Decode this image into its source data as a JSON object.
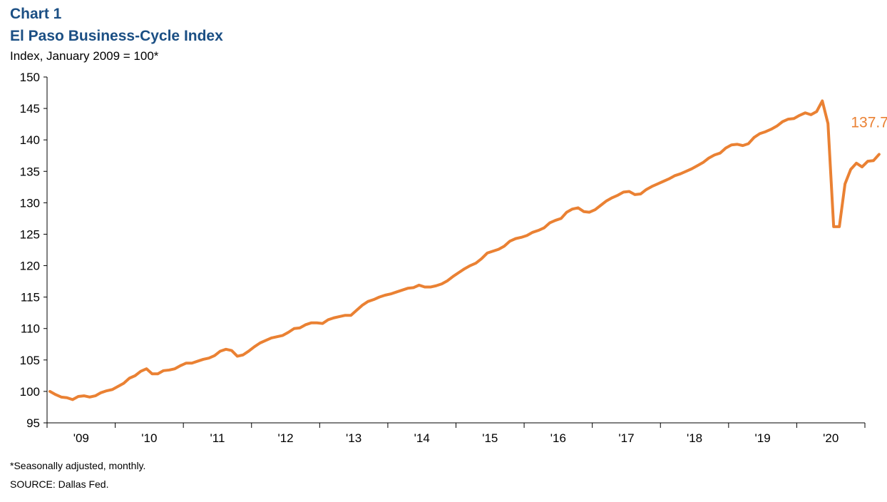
{
  "header": {
    "chart_number": "Chart 1",
    "title": "El Paso Business-Cycle Index",
    "subtitle": "Index, January 2009 = 100*"
  },
  "footer": {
    "note": "*Seasonally adjusted, monthly.",
    "source": "SOURCE:  Dallas Fed."
  },
  "colors": {
    "line": "#ea8133",
    "title": "#1b4f84",
    "axis": "#000000"
  },
  "chart_data": {
    "type": "line",
    "title": "El Paso Business-Cycle Index",
    "ylabel": "Index, January 2009 = 100*",
    "xlabel": "",
    "ylim": [
      95,
      150
    ],
    "yticks": [
      95,
      100,
      105,
      110,
      115,
      120,
      125,
      130,
      135,
      140,
      145,
      150
    ],
    "xlim": [
      "2009-01",
      "2020-12"
    ],
    "x_tick_labels": [
      "'09",
      "'10",
      "'11",
      "'12",
      "'13",
      "'14",
      "'15",
      "'16",
      "'17",
      "'18",
      "'19",
      "'20"
    ],
    "grid": false,
    "legend": "none",
    "series": [
      {
        "frequency": "monthly",
        "start": "2009-01",
        "values": [
          100.0,
          99.5,
          99.1,
          99.0,
          98.7,
          99.2,
          99.3,
          99.1,
          99.3,
          99.8,
          100.1,
          100.3,
          100.8,
          101.3,
          102.1,
          102.5,
          103.2,
          103.6,
          102.8,
          102.8,
          103.3,
          103.4,
          103.6,
          104.1,
          104.5,
          104.5,
          104.8,
          105.1,
          105.3,
          105.7,
          106.4,
          106.7,
          106.5,
          105.6,
          105.8,
          106.4,
          107.1,
          107.7,
          108.1,
          108.5,
          108.7,
          108.9,
          109.4,
          110.0,
          110.1,
          110.6,
          110.9,
          110.9,
          110.8,
          111.4,
          111.7,
          111.9,
          112.1,
          112.1,
          112.9,
          113.7,
          114.3,
          114.6,
          115.0,
          115.3,
          115.5,
          115.8,
          116.1,
          116.4,
          116.5,
          116.9,
          116.6,
          116.6,
          116.8,
          117.1,
          117.6,
          118.3,
          118.9,
          119.5,
          120.0,
          120.4,
          121.1,
          122.0,
          122.3,
          122.6,
          123.1,
          123.9,
          124.3,
          124.5,
          124.8,
          125.3,
          125.6,
          126.0,
          126.8,
          127.2,
          127.5,
          128.5,
          129.0,
          129.2,
          128.6,
          128.5,
          128.9,
          129.6,
          130.3,
          130.8,
          131.2,
          131.7,
          131.8,
          131.3,
          131.4,
          132.1,
          132.6,
          133.0,
          133.4,
          133.8,
          134.3,
          134.6,
          135.0,
          135.4,
          135.9,
          136.4,
          137.1,
          137.6,
          137.9,
          138.7,
          139.2,
          139.3,
          139.1,
          139.4,
          140.4,
          141.0,
          141.3,
          141.7,
          142.2,
          142.9,
          143.3,
          143.4,
          143.9,
          144.3,
          144.0,
          144.5,
          146.2,
          142.6,
          126.2,
          126.2,
          133.0,
          135.3,
          136.3,
          135.7,
          136.6,
          136.7,
          137.7
        ],
        "end_label": "137.7"
      }
    ]
  }
}
